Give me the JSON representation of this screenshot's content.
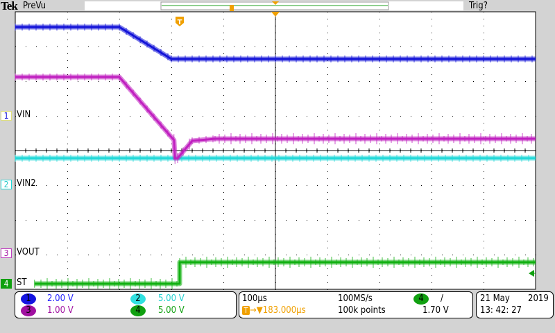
{
  "header": {
    "brand": "Tek",
    "mode": "PreVu",
    "trigger_status": "Trig?"
  },
  "channel_labels": [
    {
      "num": "1",
      "label": "VIN",
      "color": "#1414d8"
    },
    {
      "num": "2",
      "label": "VIN2",
      "color": "#20d8d8"
    },
    {
      "num": "3",
      "label": "VOUT",
      "color": "#a010a0"
    },
    {
      "num": "4",
      "label": "ST",
      "color": "#10a010"
    }
  ],
  "vertical_panel": {
    "ch1": {
      "num": "1",
      "scale": "2.00 V"
    },
    "ch2": {
      "num": "2",
      "scale": "5.00 V"
    },
    "ch3": {
      "num": "3",
      "scale": "1.00 V"
    },
    "ch4": {
      "num": "4",
      "scale": "5.00 V"
    }
  },
  "horizontal_panel": {
    "time_div": "100µs",
    "sample_rate": "100MS/s",
    "trigger_source": "4",
    "trigger_slope": "/",
    "trigger_marker": "T",
    "trigger_delay": "183.000µs",
    "record_length": "100k points",
    "trigger_level": "1.70 V"
  },
  "datetime": {
    "date": "21 May",
    "year": "2019",
    "time": "13: 42: 27"
  },
  "colors": {
    "trigger": "#f0a000",
    "background": "#d3d3d3",
    "graticule": "#ffffff"
  },
  "chart_data": {
    "type": "line",
    "title": "",
    "xlabel": "",
    "ylabel": "",
    "x_unit": "µs (relative to trigger)",
    "xlim": [
      -316,
      684
    ],
    "time_per_div": 100,
    "divisions": {
      "x": 10,
      "y": 8
    },
    "grid": true,
    "series": [
      {
        "name": "VIN",
        "channel": 1,
        "volts_per_div": 2.0,
        "color": "#1414d8",
        "points": [
          [
            -316,
            5.12
          ],
          [
            -116,
            5.12
          ],
          [
            -16,
            3.28
          ],
          [
            684,
            3.28
          ]
        ]
      },
      {
        "name": "VIN2",
        "channel": 2,
        "volts_per_div": 5.0,
        "color": "#20d8d8",
        "points": [
          [
            -316,
            3.8
          ],
          [
            684,
            3.8
          ]
        ]
      },
      {
        "name": "VOUT",
        "channel": 3,
        "volts_per_div": 1.0,
        "color": "#c020c0",
        "points": [
          [
            -316,
            5.08
          ],
          [
            -116,
            5.08
          ],
          [
            -11,
            3.26
          ],
          [
            -9,
            2.74
          ],
          [
            -4,
            2.74
          ],
          [
            24,
            3.24
          ],
          [
            68,
            3.3
          ],
          [
            684,
            3.3
          ]
        ]
      },
      {
        "name": "ST",
        "channel": 4,
        "volts_per_div": 5.0,
        "color": "#10b010",
        "points": [
          [
            -279,
            0.0
          ],
          [
            0,
            0.0
          ],
          [
            0,
            3.1
          ],
          [
            684,
            3.1
          ]
        ]
      }
    ]
  }
}
